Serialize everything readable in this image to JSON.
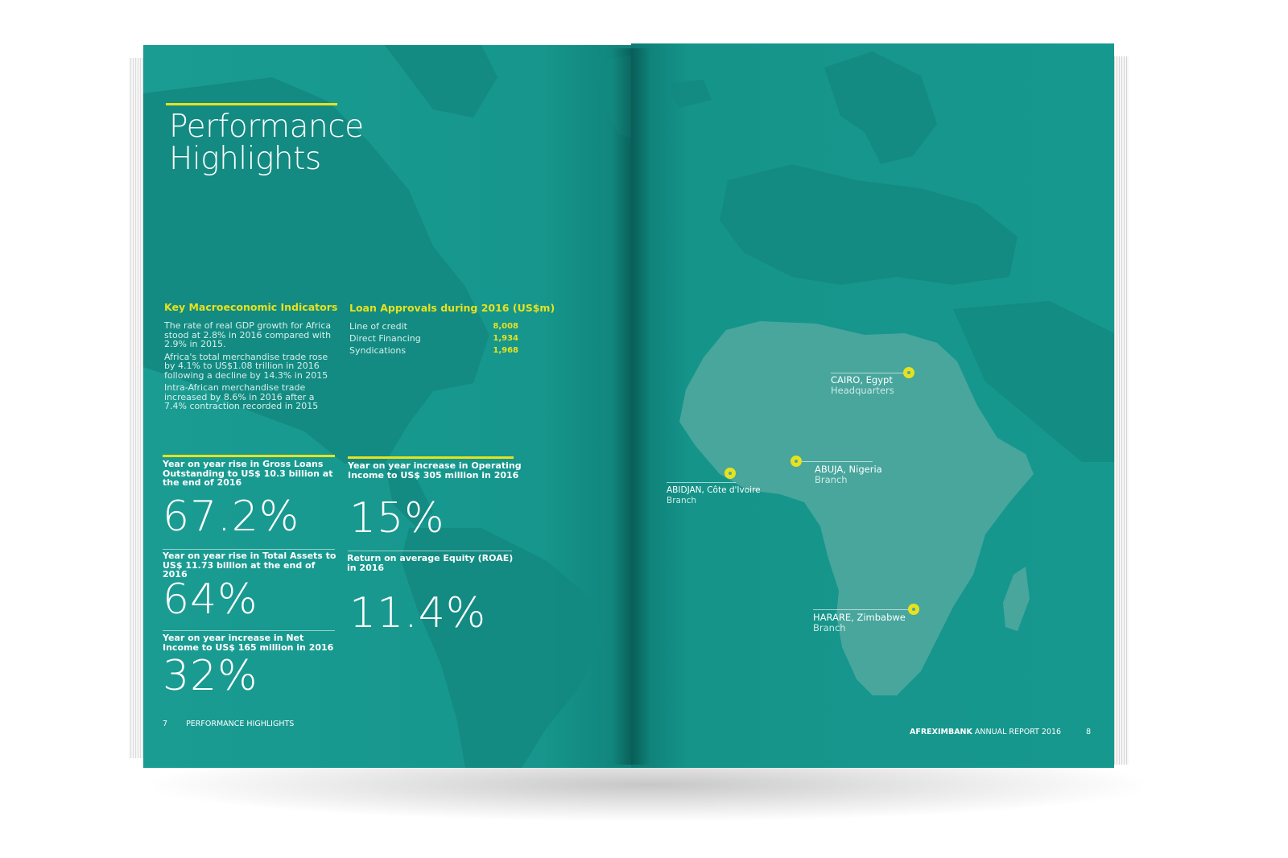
{
  "left_page": {
    "title_line1": "Performance",
    "title_line2": "Highlights",
    "macro": {
      "heading": "Key Macroeconomic Indicators",
      "paragraphs": [
        "The rate of real GDP growth for Africa stood at 2.8% in 2016 compared with 2.9% in 2015.",
        "Africa's total merchandise trade rose by 4.1% to US$1.08 trillion in 2016 following a decline by 14.3% in 2015",
        "Intra-African merchandise trade increased by 8.6% in 2016 after a 7.4% contraction recorded in 2015"
      ]
    },
    "loans": {
      "heading": "Loan Approvals during 2016 (US$m)",
      "rows": [
        {
          "label": "Line of credit",
          "value": "8,008"
        },
        {
          "label": "Direct Financing",
          "value": "1,934"
        },
        {
          "label": "Syndications",
          "value": "1,968"
        }
      ]
    },
    "stats": [
      {
        "label": "Year on year rise in Gross Loans Outstanding to US$ 10.3 billion at the end of 2016",
        "value": "67.2%"
      },
      {
        "label": "Year on year increase in Operating Income to US$ 305 million in 2016",
        "value": "15%"
      },
      {
        "label": "Year on year rise in Total Assets to US$ 11.73 billion at the end of 2016",
        "value": "64%"
      },
      {
        "label": "Return on average Equity (ROAE) in 2016",
        "value": "11.4%"
      },
      {
        "label": "Year on year increase in Net Income to US$ 165 million in 2016",
        "value": "32%"
      }
    ],
    "footer": {
      "page_number": "7",
      "section": "PERFORMANCE HIGHLIGHTS"
    }
  },
  "right_page": {
    "locations": [
      {
        "city": "CAIRO, Egypt",
        "role": "Headquarters"
      },
      {
        "city": "ABUJA, Nigeria",
        "role": "Branch"
      },
      {
        "city": "ABIDJAN, Côte d'Ivoire",
        "role": "Branch"
      },
      {
        "city": "HARARE, Zimbabwe",
        "role": "Branch"
      }
    ],
    "footer": {
      "brand": "AFREXIMBANK",
      "report": "ANNUAL REPORT 2016",
      "page_number": "8"
    }
  },
  "colors": {
    "teal": "#15958c",
    "accent_yellow": "#e7e21e"
  }
}
